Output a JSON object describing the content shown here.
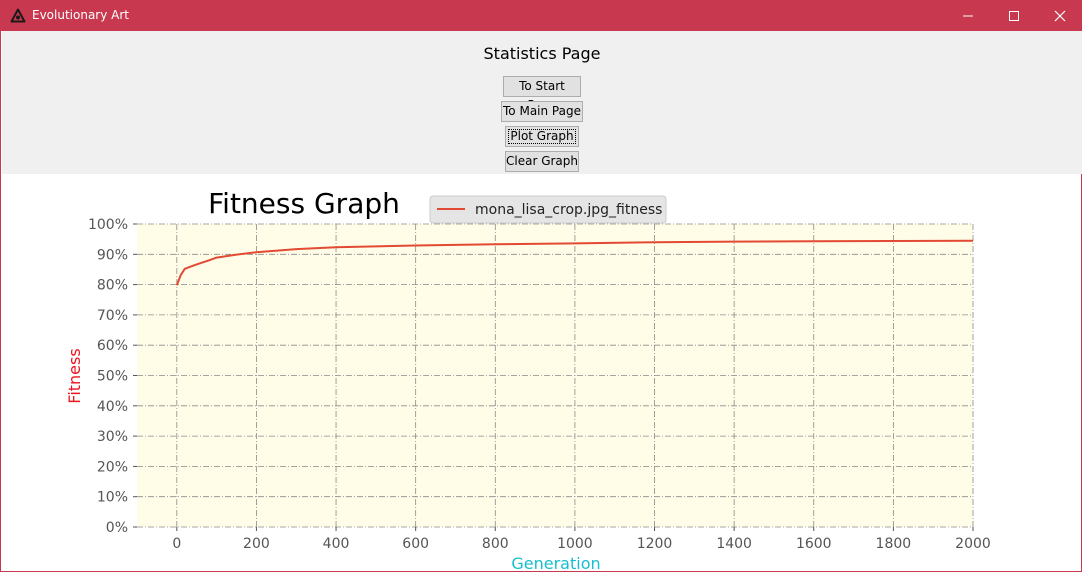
{
  "window": {
    "title": "Evolutionary Art",
    "accent_color": "#c8384e",
    "icons": {
      "app": "triangle-logo-icon",
      "minimize": "minimize-icon",
      "maximize": "maximize-icon",
      "close": "close-icon"
    }
  },
  "page": {
    "title": "Statistics Page",
    "buttons": {
      "start": "To Start Page",
      "main": "To Main Page",
      "plot": "Plot Graph",
      "clear": "Clear Graph"
    }
  },
  "chart_data": {
    "type": "line",
    "title": "Fitness Graph",
    "xlabel": "Generation",
    "ylabel": "Fitness",
    "xlabel_color": "#17becf",
    "ylabel_color": "#e8141e",
    "xlim": [
      -100,
      2000
    ],
    "ylim": [
      0,
      100
    ],
    "x_ticks": [
      0,
      200,
      400,
      600,
      800,
      1000,
      1200,
      1400,
      1600,
      1800,
      2000
    ],
    "y_ticks": [
      "0%",
      "10%",
      "20%",
      "30%",
      "40%",
      "50%",
      "60%",
      "70%",
      "80%",
      "90%",
      "100%"
    ],
    "grid": true,
    "plot_background": "#fffde7",
    "legend_location": "top-center",
    "series": [
      {
        "name": "mona_lisa_crop.jpg_fitness",
        "color": "#e24a33",
        "x": [
          0,
          5,
          10,
          20,
          40,
          60,
          80,
          100,
          150,
          200,
          300,
          400,
          500,
          600,
          800,
          1000,
          1200,
          1400,
          1600,
          1800,
          2000
        ],
        "y": [
          79.8,
          81.5,
          83.2,
          85.2,
          86.2,
          87.1,
          88.0,
          88.9,
          89.9,
          90.7,
          91.7,
          92.3,
          92.6,
          92.9,
          93.3,
          93.6,
          94.0,
          94.2,
          94.3,
          94.4,
          94.5
        ]
      }
    ]
  }
}
